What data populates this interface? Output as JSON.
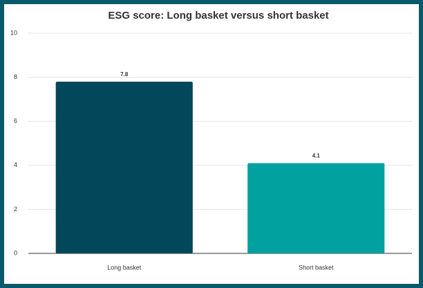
{
  "chart_data": {
    "type": "bar",
    "title": "ESG score: Long basket versus short basket",
    "categories": [
      "Long basket",
      "Short basket"
    ],
    "values": [
      7.8,
      4.1
    ],
    "colors": [
      "#02475a",
      "#00a19f"
    ],
    "ylim": [
      0,
      10
    ],
    "yticks": [
      0,
      2,
      4,
      6,
      8,
      10
    ],
    "grid": true,
    "data_labels": true
  }
}
